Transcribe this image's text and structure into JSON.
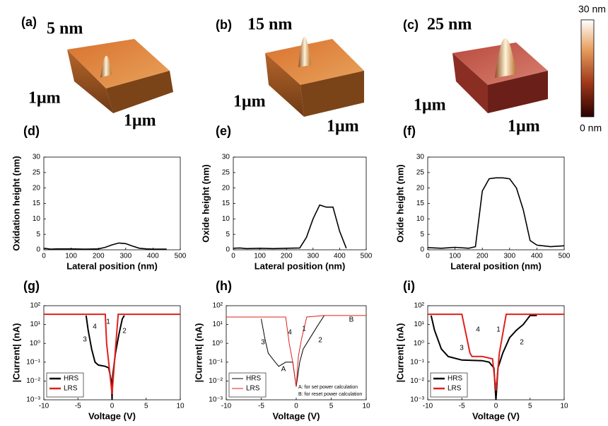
{
  "afm_panels": [
    {
      "label": "(a)",
      "height": "5 nm",
      "size_y": "1μm",
      "size_x": "1μm"
    },
    {
      "label": "(b)",
      "height": "15 nm",
      "size_y": "1μm",
      "size_x": "1μm"
    },
    {
      "label": "(c)",
      "height": "25 nm",
      "size_y": "1μm",
      "size_x": "1μm"
    }
  ],
  "colorbar": {
    "max": "30 nm",
    "min": "0 nm"
  },
  "chart_data": [
    {
      "type": "line",
      "panel_label": "(d)",
      "x_label": "Lateral position (nm)",
      "y_label": "Oxidation height (nm)",
      "color": "#000000",
      "x": [
        0,
        25,
        50,
        100,
        150,
        200,
        225,
        250,
        275,
        300,
        325,
        350,
        375,
        400,
        450
      ],
      "values": [
        0.5,
        0.2,
        0.3,
        0.3,
        0.2,
        0.3,
        0.8,
        1.6,
        2.2,
        2.0,
        1.2,
        0.5,
        0.3,
        0.2,
        0.2
      ],
      "xlim": [
        0,
        500
      ],
      "xticks": [
        0,
        100,
        200,
        300,
        400,
        500
      ],
      "ylim": [
        0,
        30
      ],
      "yticks": [
        0,
        5,
        10,
        15,
        20,
        25,
        30
      ]
    },
    {
      "type": "line",
      "panel_label": "(e)",
      "x_label": "Lateral position (nm)",
      "y_label": "Oxide height (nm)",
      "color": "#000000",
      "x": [
        0,
        25,
        50,
        100,
        150,
        200,
        250,
        275,
        300,
        325,
        350,
        375,
        400,
        425
      ],
      "values": [
        0.5,
        0.6,
        0.4,
        0.5,
        0.4,
        0.5,
        0.6,
        4,
        10,
        14.5,
        13.8,
        13.8,
        6,
        0.5
      ],
      "xlim": [
        0,
        500
      ],
      "xticks": [
        0,
        100,
        200,
        300,
        400,
        500
      ],
      "ylim": [
        0,
        30
      ],
      "yticks": [
        0,
        5,
        10,
        15,
        20,
        25,
        30
      ]
    },
    {
      "type": "line",
      "panel_label": "(f)",
      "x_label": "Lateral position (nm)",
      "y_label": "Oxide height (nm)",
      "color": "#000000",
      "x": [
        0,
        50,
        100,
        150,
        175,
        200,
        225,
        250,
        275,
        300,
        325,
        350,
        375,
        400,
        450,
        500
      ],
      "values": [
        0.7,
        0.5,
        0.8,
        0.5,
        1,
        19,
        23,
        23.3,
        23.3,
        23,
        20,
        13,
        3,
        1.5,
        1,
        1.3
      ],
      "xlim": [
        0,
        500
      ],
      "xticks": [
        0,
        100,
        200,
        300,
        400,
        500
      ],
      "ylim": [
        0,
        30
      ],
      "yticks": [
        0,
        5,
        10,
        15,
        20,
        25,
        30
      ]
    },
    {
      "type": "logline",
      "panel_label": "(g)",
      "x_label": "Voltage (V)",
      "y_label": "|Current| (nA)",
      "legend": "lower left",
      "series": [
        {
          "name": "HRS",
          "color": "#000000",
          "x": [
            -3.8,
            -3.5,
            -3,
            -2.5,
            -2,
            -1,
            -0.5,
            -0.1,
            0,
            0.1,
            0.5,
            1,
            1.5,
            1.8
          ],
          "values": [
            30,
            5,
            0.5,
            0.1,
            0.07,
            0.06,
            0.05,
            0.01,
            0.001,
            0.02,
            0.3,
            3,
            20,
            30
          ]
        },
        {
          "name": "LRS",
          "color": "#e0201b",
          "x": [
            -10,
            -1,
            -0.8,
            -0.5,
            0,
            0.5,
            0.9,
            10
          ],
          "values": [
            35,
            35,
            1,
            0.1,
            0.002,
            0.5,
            35,
            35
          ]
        }
      ],
      "annotations": [
        "1",
        "2",
        "3",
        "4"
      ],
      "xlim": [
        -10,
        10
      ],
      "xticks": [
        -10,
        -5,
        0,
        5,
        10
      ],
      "ylim": [
        0.001,
        100
      ],
      "yticks": [
        {
          "value": 0.001,
          "label": "10⁻³"
        },
        {
          "value": 0.01,
          "label": "10⁻²"
        },
        {
          "value": 0.1,
          "label": "10⁻¹"
        },
        {
          "value": 1,
          "label": "10⁰"
        },
        {
          "value": 10,
          "label": "10¹"
        },
        {
          "value": 100,
          "label": "10²"
        }
      ]
    },
    {
      "type": "logline",
      "panel_label": "(h)",
      "x_label": "Voltage (V)",
      "y_label": "|Current| (nA)",
      "legend": "lower left",
      "series": [
        {
          "name": "HRS",
          "color": "#000000",
          "x": [
            -5,
            -4.5,
            -4,
            -3,
            -2.5,
            -1.5,
            -0.5,
            0,
            0.5,
            1,
            2,
            3,
            4
          ],
          "values": [
            20,
            2,
            0.3,
            0.1,
            0.06,
            0.1,
            0.1,
            0.005,
            0.1,
            0.5,
            2,
            8,
            30
          ]
        },
        {
          "name": "LRS",
          "color": "#e0201b",
          "x": [
            -10,
            -1.5,
            -1,
            -0.5,
            0,
            0.3,
            0.8,
            1.5,
            4,
            10
          ],
          "values": [
            25,
            25,
            1,
            0.1,
            0.005,
            0.2,
            2,
            25,
            30,
            30
          ]
        }
      ],
      "annotations": [
        "1",
        "2",
        "3",
        "4",
        "A",
        "B",
        "A: for set power calculation",
        "B: for reset power calculation"
      ],
      "xlim": [
        -10,
        10
      ],
      "xticks": [
        -10,
        -5,
        0,
        5,
        10
      ],
      "ylim": [
        0.001,
        100
      ],
      "yticks": [
        {
          "value": 0.001,
          "label": "10⁻³"
        },
        {
          "value": 0.01,
          "label": "10⁻²"
        },
        {
          "value": 0.1,
          "label": "10⁻¹"
        },
        {
          "value": 1,
          "label": "10⁰"
        },
        {
          "value": 10,
          "label": "10¹"
        },
        {
          "value": 100,
          "label": "10²"
        }
      ]
    },
    {
      "type": "logline",
      "panel_label": "(i)",
      "x_label": "Voltage (V)",
      "y_label": "|Current| (nA)",
      "legend": "lower left",
      "series": [
        {
          "name": "HRS",
          "color": "#000000",
          "x": [
            -9.5,
            -9,
            -8,
            -7,
            -5,
            -2,
            -1,
            -0.3,
            0,
            0.3,
            1,
            2,
            3,
            4,
            5,
            6
          ],
          "values": [
            30,
            5,
            0.5,
            0.2,
            0.13,
            0.12,
            0.1,
            0.05,
            0.001,
            0.05,
            0.3,
            2,
            5,
            10,
            30,
            30
          ]
        },
        {
          "name": "LRS",
          "color": "#e0201b",
          "x": [
            -10,
            -5,
            -3.8,
            -3.5,
            -2,
            -0.5,
            0,
            0.5,
            1.5,
            10
          ],
          "values": [
            35,
            35,
            0.3,
            0.2,
            0.2,
            0.15,
            0.003,
            0.3,
            35,
            35
          ]
        }
      ],
      "annotations": [
        "1",
        "2",
        "3",
        "4"
      ],
      "xlim": [
        -10,
        10
      ],
      "xticks": [
        -10,
        -5,
        0,
        5,
        10
      ],
      "ylim": [
        0.001,
        100
      ],
      "yticks": [
        {
          "value": 0.001,
          "label": "10⁻³"
        },
        {
          "value": 0.01,
          "label": "10⁻²"
        },
        {
          "value": 0.1,
          "label": "10⁻¹"
        },
        {
          "value": 1,
          "label": "10⁰"
        },
        {
          "value": 10,
          "label": "10¹"
        },
        {
          "value": 100,
          "label": "10²"
        }
      ]
    }
  ]
}
